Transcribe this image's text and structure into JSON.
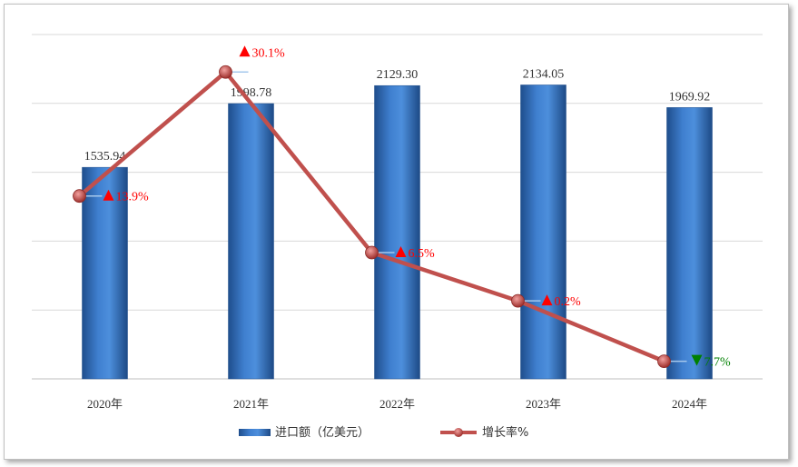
{
  "chart_data": {
    "type": "bar+line",
    "categories": [
      "2020年",
      "2021年",
      "2022年",
      "2023年",
      "2024年"
    ],
    "bar_series": {
      "name": "进口额（亿美元）",
      "values": [
        1535.94,
        1998.78,
        2129.3,
        2134.05,
        1969.92
      ],
      "value_labels": [
        "1535.94",
        "1998.78",
        "2129.30",
        "2134.05",
        "1969.92"
      ],
      "color": "#4a86d0"
    },
    "line_series": {
      "name": "增长率%",
      "values": [
        13.9,
        30.1,
        6.5,
        0.2,
        -7.7
      ],
      "labels": [
        "13.9%",
        "30.1%",
        "6.5%",
        "0.2%",
        "7.7%"
      ],
      "directions": [
        "up",
        "up",
        "up",
        "up",
        "down"
      ],
      "color": "#c0504d"
    },
    "up_color": "#ff0000",
    "down_color": "#008000",
    "bar_axis": {
      "min": 0,
      "max": 2500,
      "grid_step": 500,
      "tick_labels_shown": false
    },
    "line_axis": {
      "min": -10,
      "max": 35,
      "tick_labels_shown": false
    },
    "grid": true,
    "legend_position": "bottom"
  }
}
